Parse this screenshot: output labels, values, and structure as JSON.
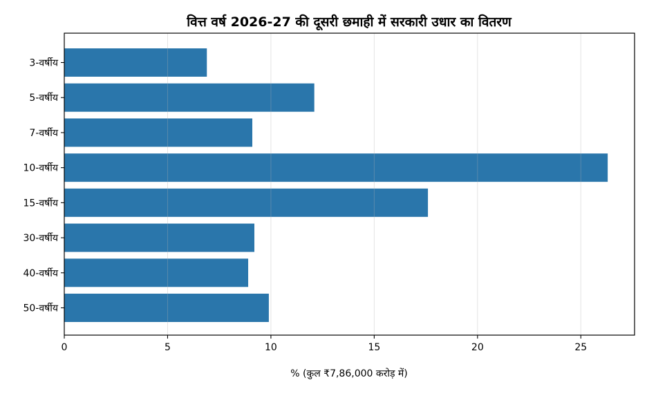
{
  "chart_data": {
    "type": "bar",
    "orientation": "horizontal",
    "title": "वित्त वर्ष 2026-27 की दूसरी छमाही में सरकारी उधार का वितरण",
    "xlabel": "% (कुल ₹7,86,000 करोड़ में)",
    "ylabel": "",
    "categories": [
      "3-वर्षीय",
      "5-वर्षीय",
      "7-वर्षीय",
      "10-वर्षीय",
      "15-वर्षीय",
      "30-वर्षीय",
      "40-वर्षीय",
      "50-वर्षीय"
    ],
    "values": [
      6.9,
      12.1,
      9.1,
      26.3,
      17.6,
      9.2,
      8.9,
      9.9
    ],
    "xlim": [
      0,
      27.6
    ],
    "xticks": [
      "0",
      "5",
      "10",
      "15",
      "20",
      "25"
    ],
    "grid": "vertical",
    "legend": "none",
    "bar_color": "#2a76ab"
  }
}
